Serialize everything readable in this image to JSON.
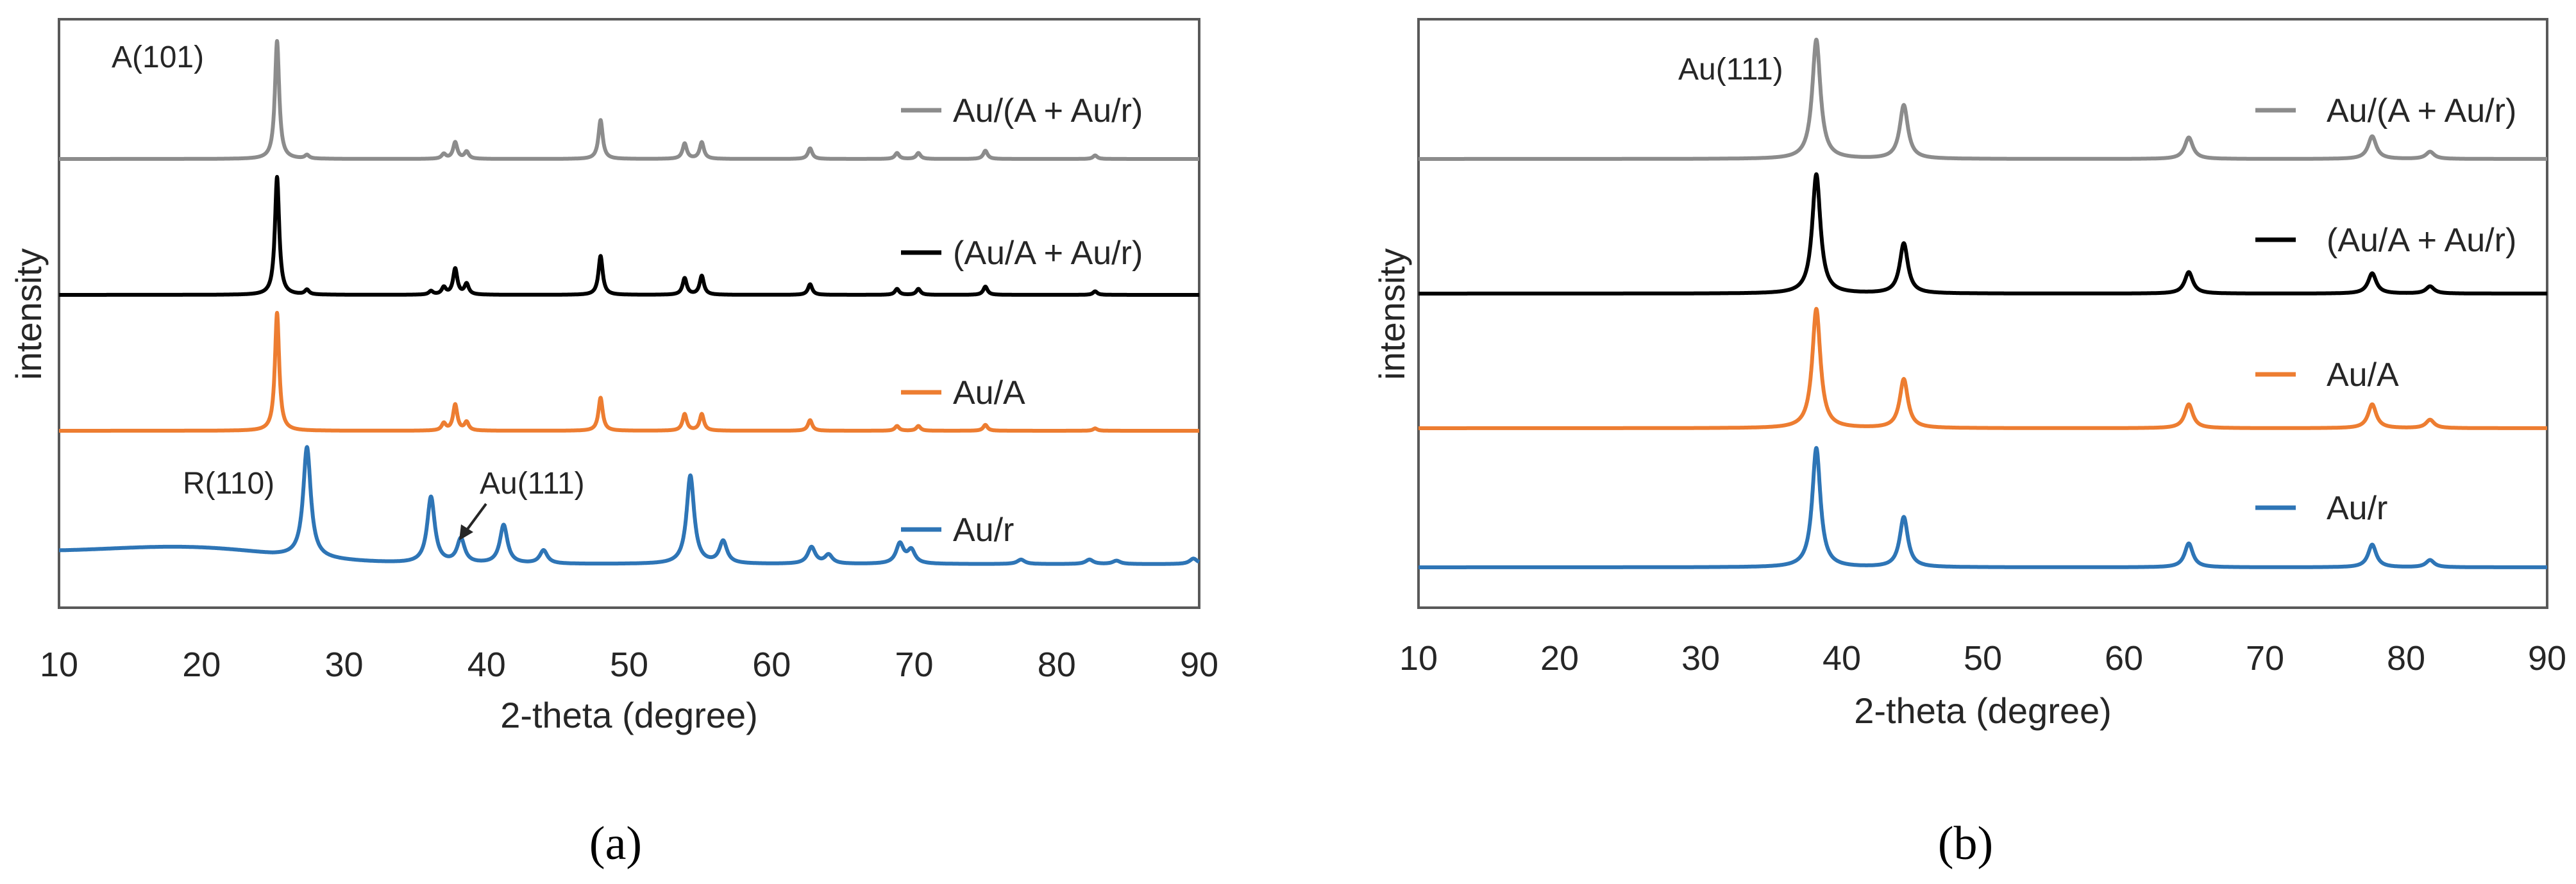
{
  "chart_data": [
    {
      "type": "line",
      "panel_label": "(a)",
      "xlabel": "2-theta (degree)",
      "ylabel": "intensity",
      "xlim": [
        10,
        90
      ],
      "xticks": [
        10,
        20,
        30,
        40,
        50,
        60,
        70,
        80,
        90
      ],
      "yticks_shown": false,
      "grid": false,
      "legend_position": "right",
      "series": [
        {
          "name": "Au/(A + Au/r)",
          "color": "#8c8c8c",
          "peaks": [
            [
              25.3,
              100
            ],
            [
              27.4,
              3
            ],
            [
              37.0,
              4
            ],
            [
              37.8,
              14
            ],
            [
              38.6,
              6
            ],
            [
              48.0,
              33
            ],
            [
              53.9,
              13
            ],
            [
              55.1,
              14
            ],
            [
              62.7,
              9
            ],
            [
              68.8,
              5
            ],
            [
              70.3,
              5
            ],
            [
              75.0,
              7
            ],
            [
              82.7,
              3
            ]
          ]
        },
        {
          "name": "(Au/A + Au/r)",
          "color": "#000000",
          "peaks": [
            [
              25.3,
              100
            ],
            [
              27.4,
              4
            ],
            [
              36.1,
              3
            ],
            [
              37.0,
              6
            ],
            [
              37.8,
              22
            ],
            [
              38.6,
              9
            ],
            [
              48.0,
              33
            ],
            [
              53.9,
              14
            ],
            [
              55.1,
              16
            ],
            [
              62.7,
              9
            ],
            [
              68.8,
              5
            ],
            [
              70.3,
              5
            ],
            [
              75.0,
              7
            ],
            [
              82.7,
              3
            ]
          ]
        },
        {
          "name": "Au/A",
          "color": "#ed7d31",
          "peaks": [
            [
              25.3,
              100
            ],
            [
              37.0,
              6
            ],
            [
              37.8,
              22
            ],
            [
              38.6,
              7
            ],
            [
              48.0,
              28
            ],
            [
              53.9,
              14
            ],
            [
              55.1,
              14
            ],
            [
              62.7,
              9
            ],
            [
              68.8,
              4
            ],
            [
              70.3,
              4
            ],
            [
              75.0,
              5
            ],
            [
              82.7,
              2
            ]
          ]
        },
        {
          "name": "Au/r",
          "color": "#2e75b6",
          "peaks": [
            [
              27.4,
              100
            ],
            [
              36.1,
              60
            ],
            [
              38.2,
              22
            ],
            [
              41.2,
              35
            ],
            [
              44.0,
              12
            ],
            [
              54.3,
              80
            ],
            [
              56.6,
              20
            ],
            [
              62.8,
              15
            ],
            [
              64.0,
              8
            ],
            [
              69.0,
              18
            ],
            [
              69.8,
              12
            ],
            [
              77.5,
              4
            ],
            [
              82.3,
              4
            ],
            [
              84.2,
              3
            ],
            [
              89.6,
              5
            ]
          ]
        }
      ],
      "annotations": [
        "A(101)",
        "R(110)",
        "Au(111)"
      ]
    },
    {
      "type": "line",
      "panel_label": "(b)",
      "xlabel": "2-theta (degree)",
      "ylabel": "intensity",
      "xlim": [
        10,
        90
      ],
      "xticks": [
        10,
        20,
        30,
        40,
        50,
        60,
        70,
        80,
        90
      ],
      "yticks_shown": false,
      "grid": false,
      "legend_position": "right",
      "series": [
        {
          "name": "Au/(A + Au/r)",
          "color": "#8c8c8c",
          "peaks": [
            [
              38.2,
              100
            ],
            [
              44.4,
              45
            ],
            [
              64.6,
              18
            ],
            [
              77.6,
              19
            ],
            [
              81.7,
              6
            ]
          ]
        },
        {
          "name": "(Au/A + Au/r)",
          "color": "#000000",
          "peaks": [
            [
              38.2,
              100
            ],
            [
              44.4,
              42
            ],
            [
              64.6,
              18
            ],
            [
              77.6,
              17
            ],
            [
              81.7,
              6
            ]
          ]
        },
        {
          "name": "Au/A",
          "color": "#ed7d31",
          "peaks": [
            [
              38.2,
              100
            ],
            [
              44.4,
              41
            ],
            [
              64.6,
              20
            ],
            [
              77.6,
              20
            ],
            [
              81.7,
              7
            ]
          ]
        },
        {
          "name": "Au/r",
          "color": "#2e75b6",
          "peaks": [
            [
              38.2,
              100
            ],
            [
              44.4,
              42
            ],
            [
              64.6,
              20
            ],
            [
              77.6,
              19
            ],
            [
              81.7,
              6
            ]
          ]
        }
      ],
      "annotations": [
        "Au(111)"
      ]
    }
  ]
}
